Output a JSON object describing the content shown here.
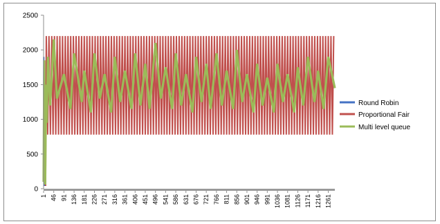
{
  "chart_data": {
    "type": "line",
    "title": "",
    "xlabel": "",
    "ylabel": "",
    "ylim": [
      0,
      2500
    ],
    "yticks": [
      0,
      500,
      1000,
      1500,
      2000,
      2500
    ],
    "xlim": [
      1,
      1290
    ],
    "xticks": [
      1,
      46,
      91,
      136,
      181,
      226,
      271,
      316,
      361,
      406,
      451,
      496,
      541,
      586,
      631,
      676,
      721,
      766,
      811,
      856,
      901,
      946,
      991,
      1036,
      1081,
      1126,
      1171,
      1216,
      1261
    ],
    "grid": false,
    "legend_position": "right",
    "series": [
      {
        "name": "Round Robin",
        "color": "#4472c4",
        "x": [
          1,
          2,
          3,
          4,
          10
        ],
        "values": [
          600,
          1900,
          50,
          50,
          50
        ]
      },
      {
        "name": "Proportional Fair",
        "color": "#c0504d",
        "x": [
          1,
          5,
          10,
          13,
          1290
        ],
        "values": [
          300,
          1600,
          40,
          2200,
          2200
        ],
        "oscillation": {
          "x_start": 13,
          "x_end": 1290,
          "high": 2200,
          "low": 780,
          "period": 12
        }
      },
      {
        "name": "Multi level queue",
        "color": "#9bbb59",
        "x": [
          1,
          4,
          8,
          12,
          15,
          20,
          30,
          46,
          60,
          91,
          120,
          136,
          170,
          181,
          210,
          226,
          250,
          271,
          300,
          316,
          340,
          361,
          390,
          406,
          430,
          451,
          470,
          496,
          520,
          541,
          570,
          586,
          610,
          631,
          660,
          676,
          700,
          721,
          740,
          766,
          790,
          811,
          840,
          856,
          880,
          901,
          930,
          946,
          970,
          991,
          1020,
          1036,
          1060,
          1081,
          1110,
          1126,
          1150,
          1171,
          1200,
          1216,
          1240,
          1261,
          1290
        ],
        "values": [
          100,
          1850,
          60,
          1500,
          950,
          1900,
          1200,
          2150,
          1300,
          1650,
          1150,
          1950,
          1250,
          1700,
          1100,
          1950,
          1300,
          1650,
          1100,
          1900,
          1250,
          1700,
          1150,
          1950,
          1200,
          1800,
          1150,
          2100,
          1300,
          1750,
          1150,
          1950,
          1200,
          1650,
          1100,
          1900,
          1250,
          1800,
          1150,
          1950,
          1200,
          1700,
          1150,
          2000,
          1250,
          1650,
          1100,
          1800,
          1200,
          1600,
          1100,
          1800,
          1250,
          1650,
          1100,
          1750,
          1200,
          1900,
          1250,
          1700,
          1150,
          1900,
          1450
        ]
      }
    ]
  }
}
